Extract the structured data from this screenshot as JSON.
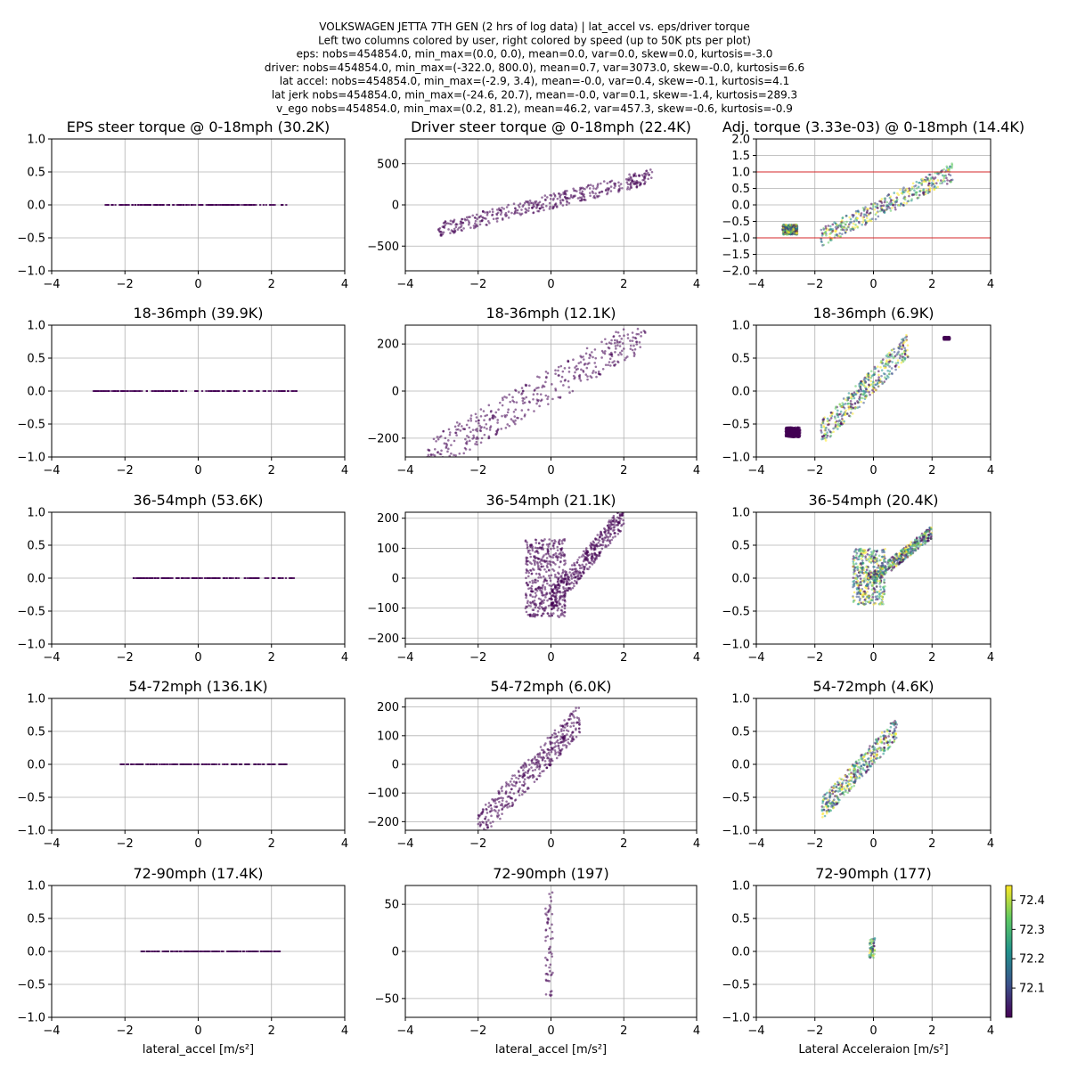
{
  "suptitle": [
    "VOLKSWAGEN JETTA 7TH GEN (2 hrs of log data) | lat_accel vs. eps/driver torque",
    "Left two columns colored by user, right colored by speed (up to 50K pts per plot)",
    "eps: nobs=454854.0, min_max=(0.0, 0.0), mean=0.0, var=0.0, skew=0.0, kurtosis=-3.0",
    "driver: nobs=454854.0, min_max=(-322.0, 800.0), mean=0.7, var=3073.0, skew=-0.0, kurtosis=6.6",
    "lat accel: nobs=454854.0, min_max=(-2.9, 3.4), mean=-0.0, var=0.4, skew=-0.1, kurtosis=4.1",
    "lat jerk nobs=454854.0, min_max=(-24.6, 20.7), mean=-0.0, var=0.1, skew=-1.4, kurtosis=289.3",
    "v_ego nobs=454854.0, min_max=(0.2, 81.2), mean=46.2, var=457.3, skew=-0.6, kurtosis=-0.9"
  ],
  "colorbar": {
    "ticks": [
      72.1,
      72.2,
      72.3,
      72.4
    ],
    "labels": [
      "72.1",
      "72.2",
      "72.3",
      "72.4"
    ],
    "range": [
      72.0,
      72.45
    ],
    "colors": [
      "#440154",
      "#3b528b",
      "#21918c",
      "#5ec962",
      "#fde725"
    ]
  },
  "chart_data": [
    {
      "type": "scatter",
      "row": 0,
      "col": 0,
      "title": "EPS steer torque @ 0-18mph (30.2K)",
      "xlabel": "",
      "xlim": [
        -4,
        4
      ],
      "ylim": [
        -1,
        1
      ],
      "xticks": [
        -4,
        -2,
        0,
        2,
        4
      ],
      "yticks": [
        -1.0,
        -0.5,
        0.0,
        0.5,
        1.0
      ],
      "ytick_labels": [
        "−1.0",
        "−0.5",
        "0.0",
        "0.5",
        "1.0"
      ],
      "clusters": [
        {
          "x": [
            -2.6,
            2.4
          ],
          "y": [
            0,
            0
          ],
          "kind": "flat",
          "color": "#440154"
        }
      ]
    },
    {
      "type": "scatter",
      "row": 0,
      "col": 1,
      "title": "Driver steer torque @ 0-18mph (22.4K)",
      "xlabel": "",
      "xlim": [
        -4,
        4
      ],
      "ylim": [
        -800,
        800
      ],
      "xticks": [
        -4,
        -2,
        0,
        2,
        4
      ],
      "yticks": [
        -500,
        0,
        500
      ],
      "ytick_labels": [
        "−500",
        "0",
        "500"
      ],
      "clusters": [
        {
          "x": [
            -3.1,
            2.8
          ],
          "y": [
            -300,
            350
          ],
          "kind": "band",
          "color": "#440154"
        }
      ]
    },
    {
      "type": "scatter",
      "row": 0,
      "col": 2,
      "title": "Adj. torque (3.33e-03) @ 0-18mph (14.4K)",
      "xlabel": "",
      "xlim": [
        -4,
        4
      ],
      "ylim": [
        -2,
        2
      ],
      "xticks": [
        -4,
        -2,
        0,
        2,
        4
      ],
      "yticks": [
        -2.0,
        -1.5,
        -1.0,
        -0.5,
        0.0,
        0.5,
        1.0,
        1.5,
        2.0
      ],
      "ytick_labels": [
        "−2.0",
        "−1.5",
        "−1.0",
        "−0.5",
        "0.0",
        "0.5",
        "1.0",
        "1.5",
        "2.0"
      ],
      "hlines": [
        1.0,
        -1.0
      ],
      "clusters": [
        {
          "x": [
            -1.8,
            2.7
          ],
          "y": [
            -1.0,
            1.0
          ],
          "kind": "band",
          "color": "multi"
        },
        {
          "x": [
            -3.1,
            -2.6
          ],
          "y": [
            -0.9,
            -0.6
          ],
          "kind": "blob",
          "color": "multi"
        }
      ]
    },
    {
      "type": "scatter",
      "row": 1,
      "col": 0,
      "title": "18-36mph (39.9K)",
      "xlabel": "",
      "xlim": [
        -4,
        4
      ],
      "ylim": [
        -1,
        1
      ],
      "xticks": [
        -4,
        -2,
        0,
        2,
        4
      ],
      "yticks": [
        -1.0,
        -0.5,
        0.0,
        0.5,
        1.0
      ],
      "ytick_labels": [
        "−1.0",
        "−0.5",
        "0.0",
        "0.5",
        "1.0"
      ],
      "clusters": [
        {
          "x": [
            -2.9,
            2.7
          ],
          "y": [
            0,
            0
          ],
          "kind": "flat",
          "color": "#440154"
        }
      ]
    },
    {
      "type": "scatter",
      "row": 1,
      "col": 1,
      "title": "18-36mph (12.1K)",
      "xlabel": "",
      "xlim": [
        -4,
        4
      ],
      "ylim": [
        -280,
        280
      ],
      "xticks": [
        -4,
        -2,
        0,
        2,
        4
      ],
      "yticks": [
        -200,
        0,
        200
      ],
      "ytick_labels": [
        "−200",
        "0",
        "200"
      ],
      "clusters": [
        {
          "x": [
            -3.4,
            2.6
          ],
          "y": [
            -280,
            250
          ],
          "kind": "band",
          "color": "#440154"
        }
      ]
    },
    {
      "type": "scatter",
      "row": 1,
      "col": 2,
      "title": "18-36mph (6.9K)",
      "xlabel": "",
      "xlim": [
        -4,
        4
      ],
      "ylim": [
        -1,
        1
      ],
      "xticks": [
        -4,
        -2,
        0,
        2,
        4
      ],
      "yticks": [
        -1.0,
        -0.5,
        0.0,
        0.5,
        1.0
      ],
      "ytick_labels": [
        "−1.0",
        "−0.5",
        "0.0",
        "0.5",
        "1.0"
      ],
      "clusters": [
        {
          "x": [
            -1.8,
            1.2
          ],
          "y": [
            -0.65,
            0.7
          ],
          "kind": "band",
          "color": "multi"
        },
        {
          "x": [
            -3.0,
            -2.5
          ],
          "y": [
            -0.7,
            -0.55
          ],
          "kind": "blob",
          "color": "#440154"
        },
        {
          "x": [
            2.4,
            2.6
          ],
          "y": [
            0.78,
            0.82
          ],
          "kind": "blob",
          "color": "#440154"
        }
      ]
    },
    {
      "type": "scatter",
      "row": 2,
      "col": 0,
      "title": "36-54mph (53.6K)",
      "xlabel": "",
      "xlim": [
        -4,
        4
      ],
      "ylim": [
        -1,
        1
      ],
      "xticks": [
        -4,
        -2,
        0,
        2,
        4
      ],
      "yticks": [
        -1.0,
        -0.5,
        0.0,
        0.5,
        1.0
      ],
      "ytick_labels": [
        "−1.0",
        "−0.5",
        "0.0",
        "0.5",
        "1.0"
      ],
      "clusters": [
        {
          "x": [
            -1.8,
            2.6
          ],
          "y": [
            0,
            0
          ],
          "kind": "flat",
          "color": "#440154"
        }
      ]
    },
    {
      "type": "scatter",
      "row": 2,
      "col": 1,
      "title": "36-54mph (21.1K)",
      "xlabel": "",
      "xlim": [
        -4,
        4
      ],
      "ylim": [
        -220,
        220
      ],
      "xticks": [
        -4,
        -2,
        0,
        2,
        4
      ],
      "yticks": [
        -200,
        -100,
        0,
        100,
        200
      ],
      "ytick_labels": [
        "−200",
        "−100",
        "0",
        "100",
        "200"
      ],
      "clusters": [
        {
          "x": [
            -0.7,
            0.4
          ],
          "y": [
            -130,
            130
          ],
          "kind": "blob",
          "color": "#440154"
        },
        {
          "x": [
            0.0,
            2.0
          ],
          "y": [
            -80,
            210
          ],
          "kind": "band",
          "color": "#440154"
        }
      ]
    },
    {
      "type": "scatter",
      "row": 2,
      "col": 2,
      "title": "36-54mph (20.4K)",
      "xlabel": "",
      "xlim": [
        -4,
        4
      ],
      "ylim": [
        -1,
        1
      ],
      "xticks": [
        -4,
        -2,
        0,
        2,
        4
      ],
      "yticks": [
        -1.0,
        -0.5,
        0.0,
        0.5,
        1.0
      ],
      "ytick_labels": [
        "−1.0",
        "−0.5",
        "0.0",
        "0.5",
        "1.0"
      ],
      "clusters": [
        {
          "x": [
            -0.7,
            0.4
          ],
          "y": [
            -0.4,
            0.45
          ],
          "kind": "blob",
          "color": "multi"
        },
        {
          "x": [
            0.0,
            2.0
          ],
          "y": [
            0.0,
            0.7
          ],
          "kind": "band",
          "color": "multi"
        }
      ]
    },
    {
      "type": "scatter",
      "row": 3,
      "col": 0,
      "title": "54-72mph (136.1K)",
      "xlabel": "",
      "xlim": [
        -4,
        4
      ],
      "ylim": [
        -1,
        1
      ],
      "xticks": [
        -4,
        -2,
        0,
        2,
        4
      ],
      "yticks": [
        -1.0,
        -0.5,
        0.0,
        0.5,
        1.0
      ],
      "ytick_labels": [
        "−1.0",
        "−0.5",
        "0.0",
        "0.5",
        "1.0"
      ],
      "clusters": [
        {
          "x": [
            -2.2,
            2.4
          ],
          "y": [
            0,
            0
          ],
          "kind": "flat",
          "color": "#440154"
        }
      ]
    },
    {
      "type": "scatter",
      "row": 3,
      "col": 1,
      "title": "54-72mph (6.0K)",
      "xlabel": "",
      "xlim": [
        -4,
        4
      ],
      "ylim": [
        -230,
        230
      ],
      "xticks": [
        -4,
        -2,
        0,
        2,
        4
      ],
      "yticks": [
        -200,
        -100,
        0,
        100,
        200
      ],
      "ytick_labels": [
        "−200",
        "−100",
        "0",
        "100",
        "200"
      ],
      "clusters": [
        {
          "x": [
            -2.0,
            0.8
          ],
          "y": [
            -220,
            160
          ],
          "kind": "band",
          "color": "#440154"
        }
      ]
    },
    {
      "type": "scatter",
      "row": 3,
      "col": 2,
      "title": "54-72mph (4.6K)",
      "xlabel": "",
      "xlim": [
        -4,
        4
      ],
      "ylim": [
        -1,
        1
      ],
      "xticks": [
        -4,
        -2,
        0,
        2,
        4
      ],
      "yticks": [
        -1.0,
        -0.5,
        0.0,
        0.5,
        1.0
      ],
      "ytick_labels": [
        "−1.0",
        "−0.5",
        "0.0",
        "0.5",
        "1.0"
      ],
      "clusters": [
        {
          "x": [
            -1.8,
            0.8
          ],
          "y": [
            -0.7,
            0.55
          ],
          "kind": "band",
          "color": "multi"
        }
      ]
    },
    {
      "type": "scatter",
      "row": 4,
      "col": 0,
      "title": "72-90mph (17.4K)",
      "xlabel": "lateral_accel [m/s²]",
      "xlim": [
        -4,
        4
      ],
      "ylim": [
        -1,
        1
      ],
      "xticks": [
        -4,
        -2,
        0,
        2,
        4
      ],
      "yticks": [
        -1.0,
        -0.5,
        0.0,
        0.5,
        1.0
      ],
      "ytick_labels": [
        "−1.0",
        "−0.5",
        "0.0",
        "0.5",
        "1.0"
      ],
      "clusters": [
        {
          "x": [
            -1.6,
            2.2
          ],
          "y": [
            0,
            0
          ],
          "kind": "flat",
          "color": "#440154"
        }
      ]
    },
    {
      "type": "scatter",
      "row": 4,
      "col": 1,
      "title": "72-90mph (197)",
      "xlabel": "lateral_accel [m/s²]",
      "xlim": [
        -4,
        4
      ],
      "ylim": [
        -70,
        70
      ],
      "xticks": [
        -4,
        -2,
        0,
        2,
        4
      ],
      "yticks": [
        -50,
        0,
        50
      ],
      "ytick_labels": [
        "−50",
        "0",
        "50"
      ],
      "clusters": [
        {
          "x": [
            -0.15,
            0.05
          ],
          "y": [
            -48,
            65
          ],
          "kind": "vertical",
          "color": "#440154"
        }
      ]
    },
    {
      "type": "scatter",
      "row": 4,
      "col": 2,
      "title": "72-90mph (177)",
      "xlabel": "Lateral Acceleraion [m/s²]",
      "xlim": [
        -4,
        4
      ],
      "ylim": [
        -1,
        1
      ],
      "xticks": [
        -4,
        -2,
        0,
        2,
        4
      ],
      "yticks": [
        -1.0,
        -0.5,
        0.0,
        0.5,
        1.0
      ],
      "ytick_labels": [
        "−1.0",
        "−0.5",
        "0.0",
        "0.5",
        "1.0"
      ],
      "clusters": [
        {
          "x": [
            -0.15,
            0.05
          ],
          "y": [
            -0.1,
            0.2
          ],
          "kind": "vertical",
          "color": "multi"
        }
      ]
    }
  ]
}
